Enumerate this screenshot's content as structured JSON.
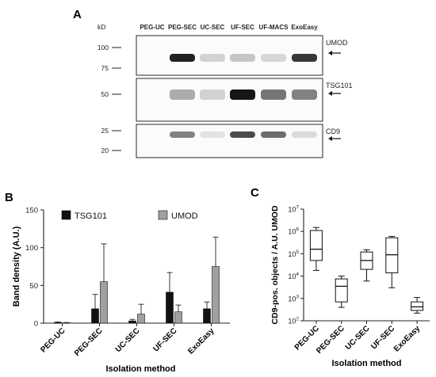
{
  "panel_a": {
    "letter": "A",
    "kd_label": "kD",
    "lanes": [
      "PEG-UC",
      "PEG-SEC",
      "UC-SEC",
      "UF-SEC",
      "UF-MACS",
      "ExoEasy"
    ],
    "blots": [
      {
        "marker": "UMOD",
        "mw_ticks": [
          {
            "label": "100",
            "value": 100
          },
          {
            "label": "75",
            "value": 75
          }
        ],
        "bands": [
          {
            "lane": "PEG-UC",
            "intensity": 0.0
          },
          {
            "lane": "PEG-SEC",
            "intensity": 0.95
          },
          {
            "lane": "UC-SEC",
            "intensity": 0.12
          },
          {
            "lane": "UF-SEC",
            "intensity": 0.18
          },
          {
            "lane": "UF-MACS",
            "intensity": 0.1
          },
          {
            "lane": "ExoEasy",
            "intensity": 0.85
          }
        ]
      },
      {
        "marker": "TSG101",
        "mw_ticks": [
          {
            "label": "50",
            "value": 50
          }
        ],
        "bands": [
          {
            "lane": "PEG-UC",
            "intensity": 0.0
          },
          {
            "lane": "PEG-SEC",
            "intensity": 0.3
          },
          {
            "lane": "UC-SEC",
            "intensity": 0.12
          },
          {
            "lane": "UF-SEC",
            "intensity": 1.0
          },
          {
            "lane": "UF-MACS",
            "intensity": 0.55
          },
          {
            "lane": "ExoEasy",
            "intensity": 0.5
          }
        ]
      },
      {
        "marker": "CD9",
        "mw_ticks": [
          {
            "label": "25",
            "value": 25
          },
          {
            "label": "20",
            "value": 20
          }
        ],
        "bands": [
          {
            "lane": "PEG-UC",
            "intensity": 0.0
          },
          {
            "lane": "PEG-SEC",
            "intensity": 0.5
          },
          {
            "lane": "UC-SEC",
            "intensity": 0.05
          },
          {
            "lane": "UF-SEC",
            "intensity": 0.75
          },
          {
            "lane": "UF-MACS",
            "intensity": 0.6
          },
          {
            "lane": "ExoEasy",
            "intensity": 0.08
          }
        ]
      }
    ]
  },
  "panel_b": {
    "letter": "B"
  },
  "panel_c": {
    "letter": "C"
  },
  "chart_data": [
    {
      "type": "bar",
      "panel": "B",
      "ylabel": "Band density (A.U.)",
      "xlabel": "Isolation method",
      "ylim": [
        0,
        150
      ],
      "yticks": [
        0,
        50,
        100,
        150
      ],
      "categories": [
        "PEG-UC",
        "PEG-SEC",
        "UC-SEC",
        "UF-SEC",
        "ExoEasy"
      ],
      "legend_position": "top",
      "series": [
        {
          "name": "TSG101",
          "color": "#111111",
          "values": [
            1,
            19,
            3,
            41,
            19
          ],
          "error": [
            0.5,
            19,
            2,
            26,
            9
          ]
        },
        {
          "name": "UMOD",
          "color": "#a0a0a0",
          "values": [
            0.5,
            55,
            12,
            15,
            75
          ],
          "error": [
            0.3,
            50,
            13,
            9,
            39
          ]
        }
      ],
      "grid": false
    },
    {
      "type": "box",
      "panel": "C",
      "ylabel": "CD9-pos. objects / A.U. UMOD",
      "xlabel": "Isolation method",
      "yscale": "log",
      "ylim": [
        100,
        10000000
      ],
      "ytick_labels": [
        {
          "base": "10",
          "exp": "2",
          "value": 100
        },
        {
          "base": "10",
          "exp": "3",
          "value": 1000
        },
        {
          "base": "10",
          "exp": "4",
          "value": 10000
        },
        {
          "base": "10",
          "exp": "5",
          "value": 100000
        },
        {
          "base": "10",
          "exp": "6",
          "value": 1000000
        },
        {
          "base": "10",
          "exp": "7",
          "value": 10000000
        }
      ],
      "categories": [
        "PEG-UC",
        "PEG-SEC",
        "UC-SEC",
        "UF-SEC",
        "ExoEasy"
      ],
      "boxes": [
        {
          "min": 18000,
          "q1": 50000,
          "median": 160000,
          "q3": 1100000,
          "max": 1500000
        },
        {
          "min": 400,
          "q1": 700,
          "median": 3500,
          "q3": 7500,
          "max": 10000
        },
        {
          "min": 6000,
          "q1": 20000,
          "median": 50000,
          "q3": 120000,
          "max": 150000
        },
        {
          "min": 3000,
          "q1": 14000,
          "median": 90000,
          "q3": 520000,
          "max": 600000
        },
        {
          "min": 220,
          "q1": 290,
          "median": 420,
          "q3": 700,
          "max": 1100
        }
      ],
      "grid": false
    }
  ]
}
